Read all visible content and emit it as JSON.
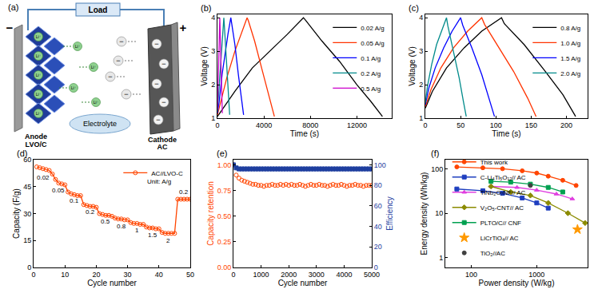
{
  "diagram": {
    "label": "(a)",
    "load": "Load",
    "anode_sign": "−",
    "cathode_sign": "+",
    "anode": [
      "Anode",
      "LVO/C"
    ],
    "cathode": [
      "Cathode",
      "AC"
    ],
    "electrolyte": "Electrolyte",
    "cation": "Li⁺",
    "anion": "−"
  },
  "chart_data": [
    {
      "label": "(b)",
      "type": "line",
      "x_label": "Time (s)",
      "y_label": "Voltage (V)",
      "xlim": [
        0,
        15000
      ],
      "xticks": [
        0,
        4000,
        8000,
        12000
      ],
      "ylim": [
        1,
        4.1
      ],
      "yticks": [
        1,
        2,
        3,
        4
      ],
      "legend": "upper right",
      "grid": false,
      "series": [
        {
          "name": "0.02 A/g",
          "color": "#000000",
          "x": [
            0,
            500,
            1500,
            3000,
            4500,
            6000,
            7400,
            7600,
            9000,
            10500,
            12000,
            13200,
            14200
          ],
          "values": [
            1.05,
            1.3,
            1.8,
            2.5,
            3.0,
            3.5,
            4.0,
            3.92,
            3.3,
            2.7,
            2.0,
            1.5,
            1.05
          ]
        },
        {
          "name": "0.05 A/g",
          "color": "#ff3300",
          "x": [
            0,
            300,
            800,
            1500,
            2000,
            2550,
            2650,
            3200,
            3800,
            4400,
            4900
          ],
          "values": [
            1.1,
            1.5,
            2.2,
            3.0,
            3.5,
            4.0,
            3.92,
            3.3,
            2.5,
            1.7,
            1.05
          ]
        },
        {
          "name": "0.1 A/g",
          "color": "#0000ff",
          "x": [
            0,
            150,
            400,
            700,
            900,
            1150,
            1200,
            1500,
            1800,
            2050,
            2250
          ],
          "values": [
            1.15,
            1.5,
            2.3,
            3.1,
            3.5,
            4.0,
            3.9,
            3.2,
            2.3,
            1.6,
            1.1
          ]
        },
        {
          "name": "0.2 A/g",
          "color": "#008b8b",
          "x": [
            0,
            80,
            200,
            350,
            450,
            550,
            580,
            750,
            900,
            1050
          ],
          "values": [
            1.2,
            1.6,
            2.4,
            3.2,
            3.6,
            4.0,
            3.85,
            2.9,
            2.0,
            1.1
          ]
        },
        {
          "name": "0.5 A/g",
          "color": "#cc00cc",
          "x": [
            0,
            40,
            100,
            160,
            200,
            215,
            290,
            360,
            420
          ],
          "values": [
            1.25,
            1.8,
            2.7,
            3.5,
            4.0,
            3.85,
            2.8,
            1.9,
            1.15
          ]
        }
      ]
    },
    {
      "label": "(c)",
      "type": "line",
      "x_label": "Time (s)",
      "y_label": "Voltage (V)",
      "xlim": [
        0,
        230
      ],
      "xticks": [
        0,
        50,
        100,
        150,
        200
      ],
      "ylim": [
        1,
        4.1
      ],
      "yticks": [
        1,
        2,
        3,
        4
      ],
      "legend": "upper right",
      "grid": false,
      "series": [
        {
          "name": "0.8 A/g",
          "color": "#000000",
          "x": [
            0,
            10,
            30,
            55,
            80,
            108,
            112,
            140,
            170,
            195,
            213
          ],
          "values": [
            1.3,
            1.8,
            2.5,
            3.1,
            3.6,
            4.0,
            3.82,
            3.2,
            2.4,
            1.7,
            1.05
          ]
        },
        {
          "name": "1.0 A/g",
          "color": "#ff3300",
          "x": [
            0,
            8,
            22,
            40,
            60,
            80,
            84,
            105,
            125,
            145,
            157
          ],
          "values": [
            1.35,
            1.85,
            2.5,
            3.1,
            3.6,
            4.0,
            3.8,
            3.1,
            2.4,
            1.6,
            1.05
          ]
        },
        {
          "name": "1.5 A/g",
          "color": "#0000ff",
          "x": [
            0,
            5,
            14,
            26,
            38,
            50,
            53,
            66,
            80,
            92,
            98
          ],
          "values": [
            1.4,
            1.9,
            2.5,
            3.1,
            3.6,
            4.0,
            3.78,
            3.1,
            2.3,
            1.5,
            1.05
          ]
        },
        {
          "name": "2.0 A/g",
          "color": "#008b8b",
          "x": [
            0,
            3,
            9,
            16,
            23,
            30,
            32,
            40,
            48,
            54,
            58
          ],
          "values": [
            1.45,
            1.95,
            2.6,
            3.2,
            3.6,
            4.0,
            3.75,
            3.0,
            2.2,
            1.5,
            1.05
          ]
        }
      ]
    },
    {
      "label": "(d)",
      "type": "line",
      "x_label": "Cycle number",
      "y_label": "Capacity (F/g)",
      "xlim": [
        0,
        50
      ],
      "xticks": [
        0,
        10,
        20,
        30,
        40,
        50
      ],
      "ylim": [
        0,
        60
      ],
      "yticks": [
        0,
        15,
        30,
        45,
        60
      ],
      "legend": "upper right",
      "grid": false,
      "x": [
        1,
        2,
        3,
        4,
        5,
        6,
        7,
        8,
        9,
        10,
        11,
        12,
        13,
        14,
        15,
        16,
        17,
        18,
        19,
        20,
        21,
        22,
        23,
        24,
        25,
        26,
        27,
        28,
        29,
        30,
        31,
        32,
        33,
        34,
        35,
        36,
        37,
        38,
        39,
        40,
        41,
        42,
        43,
        44,
        45,
        46,
        47,
        48,
        49,
        50
      ],
      "series": [
        {
          "name": "AC//LVO-C",
          "color": "#ff4500",
          "marker": "circle-open",
          "values": [
            56,
            55.5,
            55,
            54.5,
            54,
            52,
            49,
            47,
            46.5,
            46,
            42,
            41,
            40.5,
            40,
            40,
            35,
            34.5,
            34,
            34,
            33.5,
            30,
            29.5,
            29,
            29,
            28.5,
            27.5,
            27,
            27,
            26.5,
            26.5,
            25,
            24.5,
            24.5,
            24,
            24,
            22.5,
            22,
            22,
            21.5,
            21.5,
            19.5,
            19,
            19,
            19,
            19,
            38,
            38,
            38,
            38,
            38
          ]
        }
      ],
      "annotations": [
        {
          "text": "0.02",
          "x": 3,
          "y": 50
        },
        {
          "text": "0.05",
          "x": 8,
          "y": 43
        },
        {
          "text": "0.1",
          "x": 13,
          "y": 37
        },
        {
          "text": "0.2",
          "x": 18,
          "y": 31
        },
        {
          "text": "0.5",
          "x": 23,
          "y": 25.5
        },
        {
          "text": "0.8",
          "x": 28,
          "y": 23
        },
        {
          "text": "1",
          "x": 33,
          "y": 20.5
        },
        {
          "text": "1.5",
          "x": 38,
          "y": 18
        },
        {
          "text": "2",
          "x": 43,
          "y": 15
        },
        {
          "text": "0.2",
          "x": 48,
          "y": 42
        },
        {
          "text": "Unit: A/g",
          "x": 40,
          "y": 48
        }
      ]
    },
    {
      "label": "(e)",
      "type": "scatter",
      "x_label": "Cycle number",
      "xlim": [
        0,
        5000
      ],
      "xticks": [
        0,
        1000,
        2000,
        3000,
        4000,
        5000
      ],
      "ylim": [
        0,
        1.05
      ],
      "yticks": [
        {
          "value": 0,
          "label": "0.00"
        },
        {
          "value": 0.25,
          "label": "0.25"
        },
        {
          "value": 0.5,
          "label": "0.50"
        },
        {
          "value": 0.75,
          "label": "0.75"
        },
        {
          "value": 1,
          "label": "1.00"
        }
      ],
      "y2lim": [
        0,
        105
      ],
      "y2ticks": [
        0,
        20,
        40,
        60,
        80,
        100
      ],
      "grid": false,
      "x": [
        0,
        100,
        200,
        300,
        400,
        500,
        600,
        700,
        800,
        900,
        1000,
        1100,
        1200,
        1300,
        1400,
        1500,
        1600,
        1700,
        1800,
        1900,
        2000,
        2100,
        2200,
        2300,
        2400,
        2500,
        2600,
        2700,
        2800,
        2900,
        3000,
        3100,
        3200,
        3300,
        3400,
        3500,
        3600,
        3700,
        3800,
        3900,
        4000,
        4100,
        4200,
        4300,
        4400,
        4500,
        4600,
        4700,
        4800,
        4900,
        5000
      ],
      "series": [
        {
          "name": "Capacity retention",
          "color": "#ff4500",
          "marker": "circle-open",
          "values": [
            1.0,
            0.9,
            0.87,
            0.85,
            0.84,
            0.83,
            0.82,
            0.81,
            0.81,
            0.8,
            0.8,
            0.79,
            0.8,
            0.8,
            0.81,
            0.8,
            0.8,
            0.81,
            0.8,
            0.81,
            0.8,
            0.81,
            0.8,
            0.8,
            0.81,
            0.8,
            0.79,
            0.8,
            0.81,
            0.8,
            0.8,
            0.81,
            0.8,
            0.8,
            0.79,
            0.8,
            0.81,
            0.8,
            0.8,
            0.81,
            0.8,
            0.79,
            0.8,
            0.8,
            0.81,
            0.8,
            0.8,
            0.79,
            0.8,
            0.8,
            0.8
          ]
        },
        {
          "name": "Efficiency",
          "axis": "y2",
          "color": "#1f3f9f",
          "marker": "square",
          "values": [
            100,
            97,
            96,
            96,
            96,
            96,
            96,
            96,
            96,
            96,
            96,
            96,
            96,
            96,
            96,
            96,
            96,
            96,
            96,
            96,
            96,
            96,
            96,
            96,
            96,
            96,
            96,
            96,
            96,
            96,
            96,
            96,
            96,
            96,
            96,
            96,
            96,
            96,
            96,
            96,
            96,
            96,
            96,
            96,
            96,
            96,
            96,
            96,
            96,
            96,
            96
          ]
        }
      ]
    },
    {
      "label": "(f)",
      "type": "line",
      "log": true,
      "x_label": "Power density (W/kg)",
      "y_label": "Energy density (Wh/kg)",
      "xlim": [
        40,
        6000
      ],
      "xticks": [
        100,
        1000
      ],
      "ylim": [
        0.6,
        160
      ],
      "yticks": [
        1,
        10,
        100
      ],
      "legend": "lower left",
      "grid": false,
      "series": [
        {
          "name": "This work",
          "color": "#ff4500",
          "marker": "circle",
          "x": [
            60,
            150,
            300,
            600,
            1000,
            1500,
            2500,
            4000
          ],
          "values": [
            110,
            105,
            100,
            90,
            80,
            68,
            55,
            42
          ]
        },
        {
          "name": "C-Li₄Ti₅O₁₂// AC",
          "color": "#1f3fbf",
          "marker": "square",
          "x": [
            60,
            150,
            300,
            600,
            1000,
            1500
          ],
          "values": [
            35,
            32,
            28,
            22,
            17,
            13
          ]
        },
        {
          "name": "TiNb₂O₇NF// AC",
          "color": "#e040e0",
          "marker": "triangle-up",
          "x": [
            200,
            500,
            1000,
            2000,
            3500
          ],
          "values": [
            40,
            38,
            33,
            27,
            21
          ]
        },
        {
          "name": "V₂O₅-CNT// AC",
          "color": "#8b8b00",
          "marker": "diamond",
          "x": [
            200,
            400,
            800,
            1500,
            3000,
            5500
          ],
          "values": [
            40,
            30,
            25,
            17,
            10,
            6
          ]
        },
        {
          "name": "PLTO/C// CNF",
          "color": "#00a050",
          "marker": "square",
          "x": [
            200,
            400,
            800,
            1500,
            2500
          ],
          "values": [
            52,
            50,
            45,
            38,
            30
          ]
        },
        {
          "name": "LiCrTiO₄// AC",
          "color": "#ff9900",
          "marker": "star",
          "type": "scatter",
          "x": [
            4200
          ],
          "values": [
            4.3
          ]
        },
        {
          "name": "TiO₂//AC",
          "color": "#404040",
          "marker": "circle",
          "type": "scatter",
          "x": [
            800
          ],
          "values": [
            42
          ]
        }
      ]
    }
  ]
}
